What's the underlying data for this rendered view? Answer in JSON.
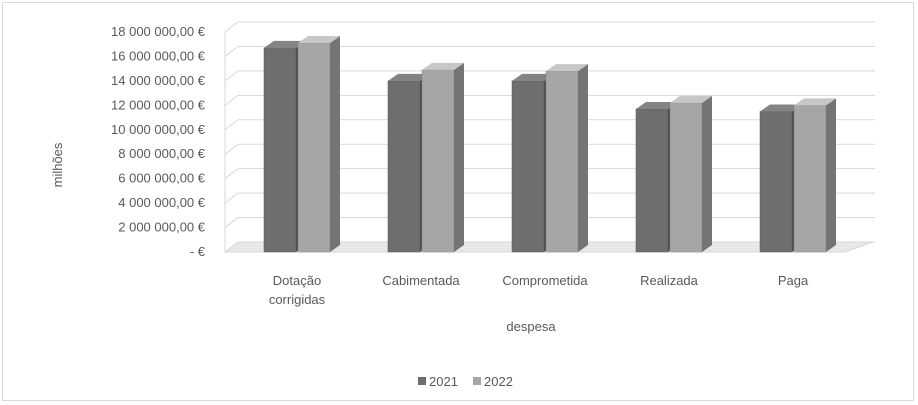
{
  "chart_data": {
    "type": "bar",
    "subtype": "3d-clustered-column",
    "categories": [
      "Dotação corrigidas",
      "Cabimentada",
      "Comprometida",
      "Realizada",
      "Paga"
    ],
    "category_lines": [
      [
        "Dotação",
        "corrigidas"
      ],
      [
        "Cabimentada"
      ],
      [
        "Comprometida"
      ],
      [
        "Realizada"
      ],
      [
        "Paga"
      ]
    ],
    "series": [
      {
        "name": "2021",
        "values": [
          16700000,
          14000000,
          14000000,
          11700000,
          11500000
        ],
        "color": "#6e6e6e"
      },
      {
        "name": "2022",
        "values": [
          17100000,
          14900000,
          14800000,
          12200000,
          12000000
        ],
        "color": "#a6a6a6"
      }
    ],
    "yticks": [
      0,
      2000000,
      4000000,
      6000000,
      8000000,
      10000000,
      12000000,
      14000000,
      16000000,
      18000000
    ],
    "ytick_labels": [
      "-  €",
      "2 000 000,00 €",
      "4 000 000,00 €",
      "6 000 000,00 €",
      "8 000 000,00 €",
      "10 000 000,00 €",
      "12 000 000,00 €",
      "14 000 000,00 €",
      "16 000 000,00 €",
      "18 000 000,00 €"
    ],
    "ylim": [
      0,
      18000000
    ],
    "xlabel": "despesa",
    "ylabel": "milhões",
    "grid": true,
    "legend_position": "bottom",
    "legend": [
      "2021",
      "2022"
    ]
  }
}
